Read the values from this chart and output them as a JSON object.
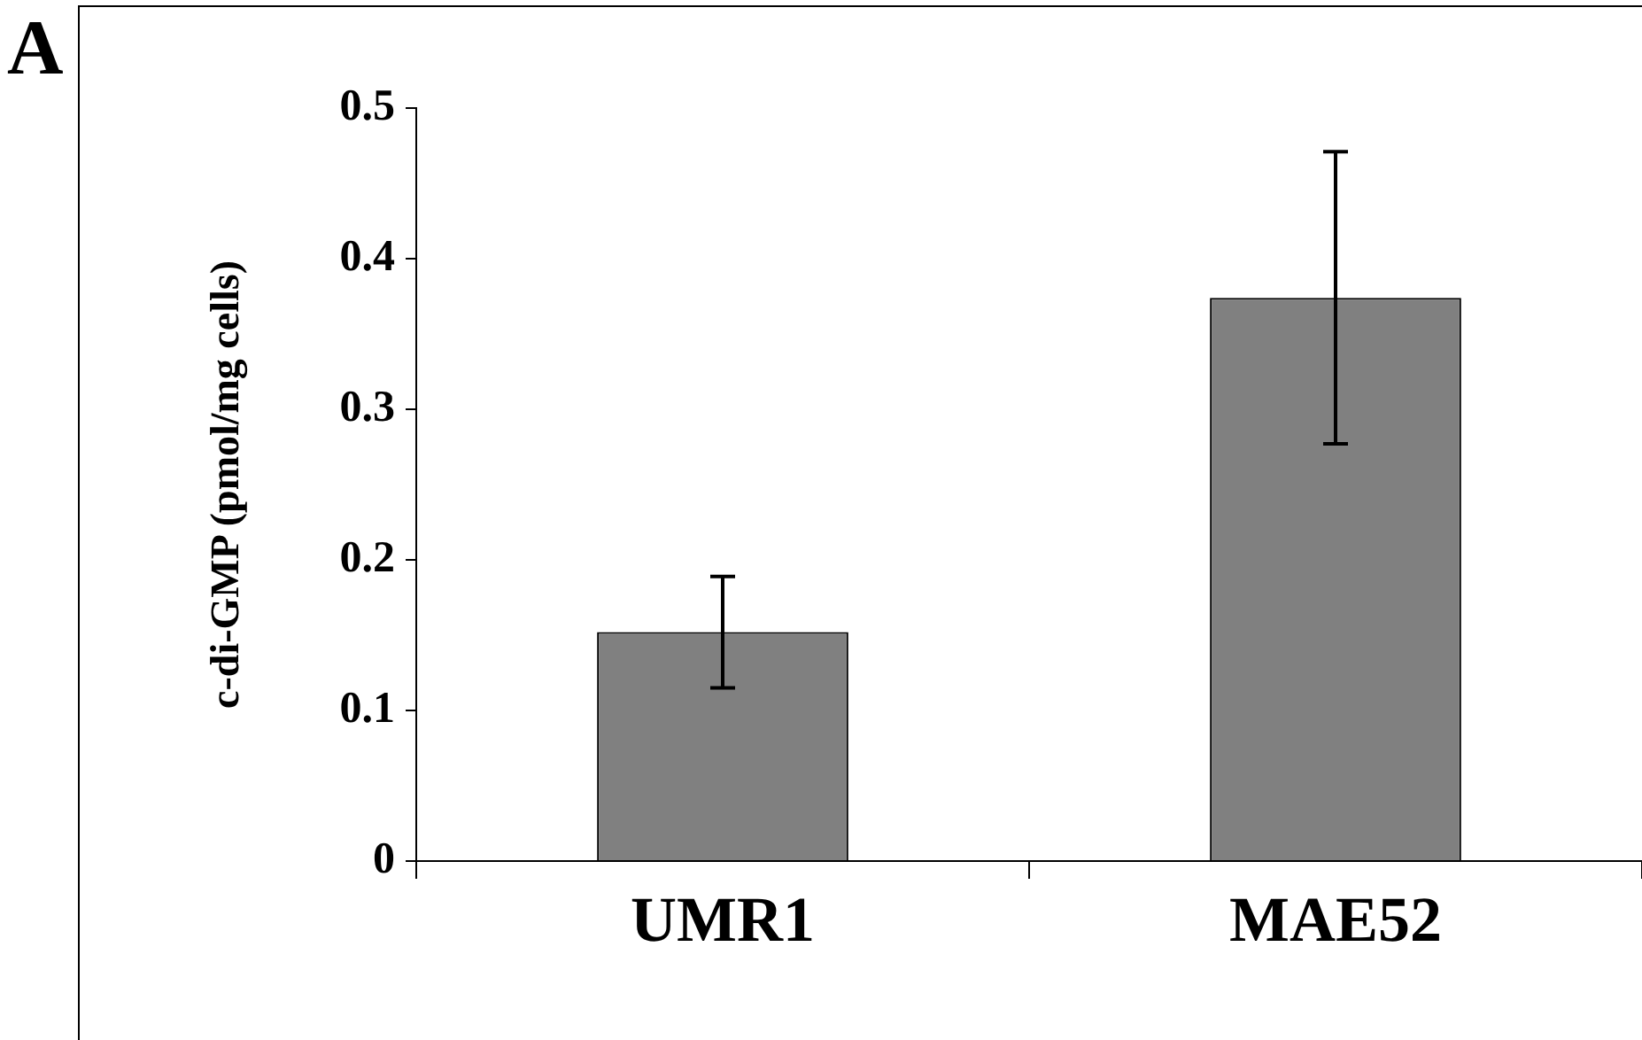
{
  "chart_data": {
    "type": "bar",
    "ylabel": "c-di-GMP (pmol/mg cells)",
    "annotations": [
      "A"
    ],
    "categories": [
      "UMR1",
      "MAE52"
    ],
    "values": [
      0.152,
      0.374
    ],
    "errors": [
      0.037,
      0.097
    ],
    "color": "#808080",
    "ylim": [
      0,
      0.5
    ],
    "yticks": [
      0,
      0.1,
      0.2,
      0.3,
      0.4,
      0.5
    ],
    "grid": false,
    "legend": false
  }
}
